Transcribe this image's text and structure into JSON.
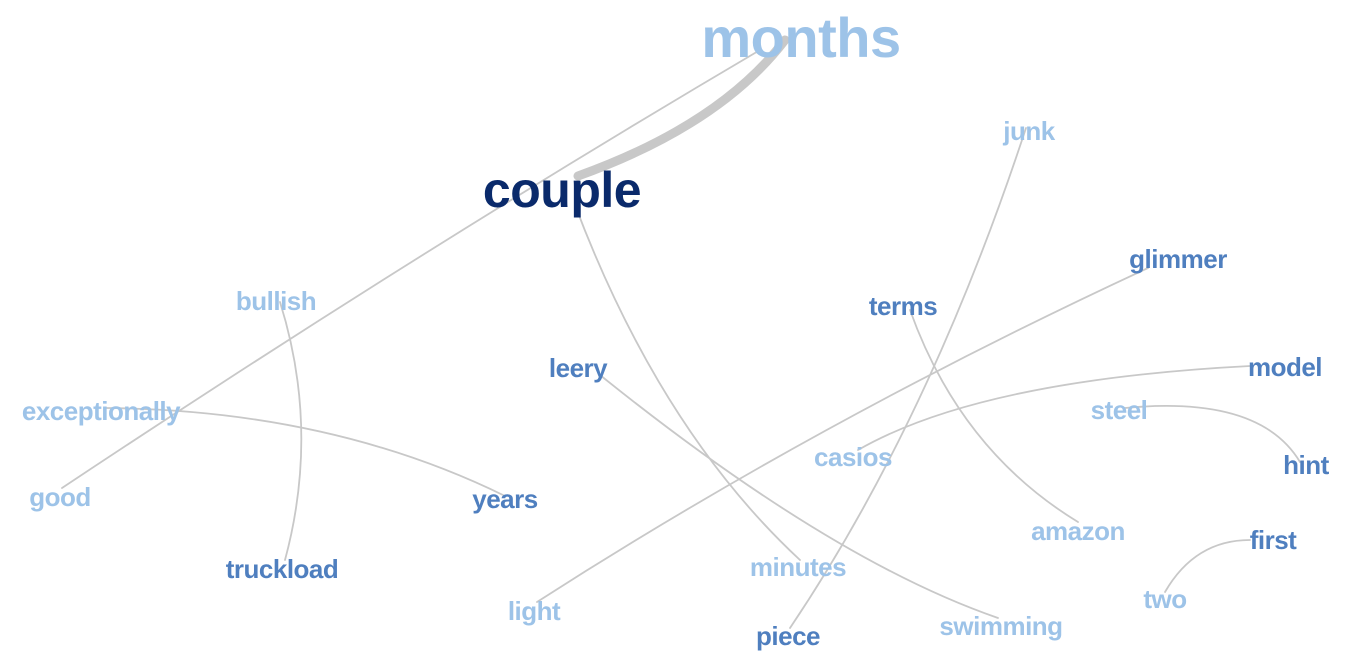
{
  "colors": {
    "dark": "#0a2a6b",
    "medium": "#4f7fbf",
    "light": "#9dc3e8",
    "edge": "#c8c8c8"
  },
  "words": [
    {
      "id": "months",
      "label": "months",
      "tone": "light"
    },
    {
      "id": "couple",
      "label": "couple",
      "tone": "dark"
    },
    {
      "id": "junk",
      "label": "junk",
      "tone": "light"
    },
    {
      "id": "glimmer",
      "label": "glimmer",
      "tone": "medium"
    },
    {
      "id": "bullish",
      "label": "bullish",
      "tone": "light"
    },
    {
      "id": "terms",
      "label": "terms",
      "tone": "medium"
    },
    {
      "id": "leery",
      "label": "leery",
      "tone": "medium"
    },
    {
      "id": "model",
      "label": "model",
      "tone": "medium"
    },
    {
      "id": "exceptionally",
      "label": "exceptionally",
      "tone": "light"
    },
    {
      "id": "steel",
      "label": "steel",
      "tone": "light"
    },
    {
      "id": "casios",
      "label": "casios",
      "tone": "light"
    },
    {
      "id": "hint",
      "label": "hint",
      "tone": "medium"
    },
    {
      "id": "good",
      "label": "good",
      "tone": "light"
    },
    {
      "id": "years",
      "label": "years",
      "tone": "medium"
    },
    {
      "id": "amazon",
      "label": "amazon",
      "tone": "light"
    },
    {
      "id": "first",
      "label": "first",
      "tone": "medium"
    },
    {
      "id": "truckload",
      "label": "truckload",
      "tone": "medium"
    },
    {
      "id": "minutes",
      "label": "minutes",
      "tone": "light"
    },
    {
      "id": "two",
      "label": "two",
      "tone": "light"
    },
    {
      "id": "light",
      "label": "light",
      "tone": "light"
    },
    {
      "id": "swimming",
      "label": "swimming",
      "tone": "light"
    },
    {
      "id": "piece",
      "label": "piece",
      "tone": "medium"
    }
  ],
  "links": [
    {
      "source": "couple",
      "target": "months",
      "weight": 3
    },
    {
      "source": "good",
      "target": "months",
      "weight": 1
    },
    {
      "source": "couple",
      "target": "minutes",
      "weight": 1
    },
    {
      "source": "junk",
      "target": "piece",
      "weight": 1
    },
    {
      "source": "glimmer",
      "target": "light",
      "weight": 1
    },
    {
      "source": "bullish",
      "target": "truckload",
      "weight": 1
    },
    {
      "source": "exceptionally",
      "target": "years",
      "weight": 1
    },
    {
      "source": "leery",
      "target": "swimming",
      "weight": 1
    },
    {
      "source": "terms",
      "target": "amazon",
      "weight": 1
    },
    {
      "source": "model",
      "target": "casios",
      "weight": 1
    },
    {
      "source": "steel",
      "target": "hint",
      "weight": 1
    },
    {
      "source": "first",
      "target": "two",
      "weight": 1
    }
  ]
}
